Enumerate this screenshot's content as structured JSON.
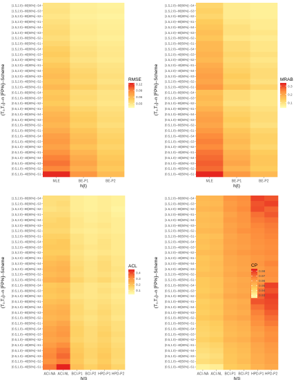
{
  "row_labels": [
    "(1.5,2.0)--80[80%]--S4",
    "(1.5,2.0)--80[80%]--S3",
    "(1.5,2.0)--80[80%]--S2",
    "(1.5,2.0)--80[80%]--S1",
    "(1.5,2.0)--80[50%]--S4",
    "(1.5,2.0)--80[50%]--S3",
    "(1.5,2.0)--80[50%]--S2",
    "(1.5,2.0)--80[50%]--S1",
    "(1.5,2.0)--40[80%]--S4",
    "(1.5,2.0)--40[80%]--S3",
    "(1.5,2.0)--40[80%]--S2",
    "(1.5,2.0)--40[80%]--S1",
    "(1.5,2.0)--40[50%]--S4",
    "(1.5,2.0)--40[50%]--S3",
    "(1.5,2.0)--40[50%]--S2",
    "(1.5,2.0)--40[50%]--S1",
    "(0.5,1.0)--80[80%]--S4",
    "(0.5,1.0)--80[80%]--S3",
    "(0.5,1.0)--80[80%]--S2",
    "(0.5,1.0)--80[80%]--S1",
    "(0.5,1.0)--80[50%]--S4",
    "(0.5,1.0)--80[50%]--S3",
    "(0.5,1.0)--80[50%]--S2",
    "(0.5,1.0)--80[50%]--S1",
    "(0.5,1.0)--40[80%]--S4",
    "(0.5,1.0)--40[80%]--S3",
    "(0.5,1.0)--40[80%]--S2",
    "(0.5,1.0)--40[80%]--S1",
    "(0.5,1.0)--40[50%]--S4",
    "(0.5,1.0)--40[50%]--S3",
    "(0.5,1.0)--40[50%]--S2",
    "(0.5,1.0)--40[50%]--S1"
  ],
  "chart_data": [
    {
      "type": "heatmap",
      "ylabel": "(T₁,T₂)--n [FP%]--Scheme",
      "xlabel": "h(t)",
      "categories": [
        "MLE",
        "BE-P1",
        "BE-P2"
      ],
      "legend_title": "RMSE",
      "legend_ticks": [
        0.12,
        0.09,
        0.06,
        0.03
      ],
      "value_range": [
        0.01,
        0.125
      ],
      "values": [
        [
          0.03,
          0.022,
          0.02
        ],
        [
          0.032,
          0.023,
          0.021
        ],
        [
          0.029,
          0.021,
          0.019
        ],
        [
          0.033,
          0.024,
          0.022
        ],
        [
          0.036,
          0.026,
          0.023
        ],
        [
          0.038,
          0.027,
          0.024
        ],
        [
          0.035,
          0.025,
          0.022
        ],
        [
          0.04,
          0.029,
          0.025
        ],
        [
          0.045,
          0.032,
          0.027
        ],
        [
          0.048,
          0.034,
          0.028
        ],
        [
          0.044,
          0.031,
          0.026
        ],
        [
          0.05,
          0.036,
          0.03
        ],
        [
          0.055,
          0.04,
          0.032
        ],
        [
          0.058,
          0.042,
          0.034
        ],
        [
          0.054,
          0.039,
          0.031
        ],
        [
          0.06,
          0.045,
          0.036
        ],
        [
          0.05,
          0.036,
          0.03
        ],
        [
          0.053,
          0.038,
          0.031
        ],
        [
          0.049,
          0.035,
          0.029
        ],
        [
          0.056,
          0.041,
          0.033
        ],
        [
          0.062,
          0.046,
          0.036
        ],
        [
          0.065,
          0.048,
          0.038
        ],
        [
          0.061,
          0.045,
          0.035
        ],
        [
          0.068,
          0.052,
          0.04
        ],
        [
          0.075,
          0.056,
          0.043
        ],
        [
          0.078,
          0.059,
          0.045
        ],
        [
          0.073,
          0.054,
          0.042
        ],
        [
          0.082,
          0.062,
          0.047
        ],
        [
          0.09,
          0.068,
          0.051
        ],
        [
          0.095,
          0.072,
          0.054
        ],
        [
          0.088,
          0.066,
          0.05
        ],
        [
          0.12,
          0.08,
          0.058
        ]
      ]
    },
    {
      "type": "heatmap",
      "ylabel": "(T₁,T₂)--n [FP%]--Scheme",
      "xlabel": "h(t)",
      "categories": [
        "MLE",
        "BE-P1",
        "BE-P2"
      ],
      "legend_title": "MRAB",
      "legend_ticks": [
        0.3,
        0.2,
        0.1
      ],
      "value_range": [
        0.04,
        0.34
      ],
      "values": [
        [
          0.12,
          0.08,
          0.07
        ],
        [
          0.13,
          0.08,
          0.07
        ],
        [
          0.12,
          0.08,
          0.07
        ],
        [
          0.14,
          0.09,
          0.08
        ],
        [
          0.15,
          0.1,
          0.08
        ],
        [
          0.16,
          0.1,
          0.09
        ],
        [
          0.15,
          0.09,
          0.08
        ],
        [
          0.17,
          0.11,
          0.09
        ],
        [
          0.17,
          0.11,
          0.09
        ],
        [
          0.18,
          0.12,
          0.1
        ],
        [
          0.17,
          0.11,
          0.09
        ],
        [
          0.19,
          0.12,
          0.1
        ],
        [
          0.2,
          0.13,
          0.11
        ],
        [
          0.21,
          0.14,
          0.11
        ],
        [
          0.2,
          0.13,
          0.1
        ],
        [
          0.22,
          0.15,
          0.12
        ],
        [
          0.16,
          0.11,
          0.09
        ],
        [
          0.17,
          0.11,
          0.09
        ],
        [
          0.16,
          0.1,
          0.09
        ],
        [
          0.18,
          0.12,
          0.1
        ],
        [
          0.2,
          0.13,
          0.11
        ],
        [
          0.21,
          0.14,
          0.11
        ],
        [
          0.2,
          0.13,
          0.1
        ],
        [
          0.22,
          0.15,
          0.12
        ],
        [
          0.24,
          0.16,
          0.13
        ],
        [
          0.25,
          0.17,
          0.13
        ],
        [
          0.24,
          0.16,
          0.12
        ],
        [
          0.26,
          0.18,
          0.14
        ],
        [
          0.27,
          0.19,
          0.15
        ],
        [
          0.28,
          0.2,
          0.15
        ],
        [
          0.27,
          0.18,
          0.14
        ],
        [
          0.33,
          0.22,
          0.17
        ]
      ]
    },
    {
      "type": "heatmap",
      "ylabel": "(T₁,T₂)--n [FP%]--Scheme",
      "xlabel": "h(t)",
      "categories": [
        "ACI-NA",
        "ACI-NL",
        "BCI-P1",
        "BCI-P2",
        "HPD-P1",
        "HPD-P2"
      ],
      "legend_title": "ACL",
      "legend_ticks": [
        0.4,
        0.3,
        0.2,
        0.1
      ],
      "value_range": [
        0.03,
        0.46
      ],
      "values": [
        [
          0.12,
          0.12,
          0.08,
          0.07,
          0.08,
          0.07
        ],
        [
          0.12,
          0.13,
          0.08,
          0.07,
          0.08,
          0.07
        ],
        [
          0.11,
          0.12,
          0.08,
          0.07,
          0.08,
          0.06
        ],
        [
          0.13,
          0.13,
          0.09,
          0.08,
          0.09,
          0.07
        ],
        [
          0.14,
          0.15,
          0.1,
          0.08,
          0.09,
          0.08
        ],
        [
          0.15,
          0.15,
          0.1,
          0.09,
          0.1,
          0.08
        ],
        [
          0.14,
          0.14,
          0.09,
          0.08,
          0.09,
          0.08
        ],
        [
          0.16,
          0.16,
          0.11,
          0.09,
          0.1,
          0.09
        ],
        [
          0.17,
          0.18,
          0.11,
          0.09,
          0.11,
          0.09
        ],
        [
          0.18,
          0.18,
          0.12,
          0.1,
          0.11,
          0.09
        ],
        [
          0.17,
          0.17,
          0.11,
          0.09,
          0.1,
          0.09
        ],
        [
          0.19,
          0.2,
          0.12,
          0.1,
          0.12,
          0.1
        ],
        [
          0.21,
          0.22,
          0.13,
          0.11,
          0.13,
          0.1
        ],
        [
          0.22,
          0.23,
          0.14,
          0.11,
          0.13,
          0.11
        ],
        [
          0.21,
          0.22,
          0.13,
          0.11,
          0.12,
          0.1
        ],
        [
          0.23,
          0.24,
          0.15,
          0.12,
          0.14,
          0.11
        ],
        [
          0.18,
          0.19,
          0.12,
          0.1,
          0.11,
          0.09
        ],
        [
          0.19,
          0.2,
          0.12,
          0.1,
          0.12,
          0.1
        ],
        [
          0.18,
          0.19,
          0.11,
          0.1,
          0.11,
          0.09
        ],
        [
          0.2,
          0.21,
          0.13,
          0.11,
          0.12,
          0.1
        ],
        [
          0.22,
          0.23,
          0.14,
          0.11,
          0.13,
          0.11
        ],
        [
          0.23,
          0.24,
          0.14,
          0.12,
          0.14,
          0.11
        ],
        [
          0.22,
          0.23,
          0.13,
          0.11,
          0.13,
          0.1
        ],
        [
          0.24,
          0.26,
          0.15,
          0.12,
          0.14,
          0.12
        ],
        [
          0.26,
          0.28,
          0.16,
          0.13,
          0.15,
          0.12
        ],
        [
          0.27,
          0.29,
          0.16,
          0.13,
          0.16,
          0.13
        ],
        [
          0.26,
          0.27,
          0.15,
          0.13,
          0.15,
          0.12
        ],
        [
          0.28,
          0.31,
          0.17,
          0.14,
          0.16,
          0.13
        ],
        [
          0.31,
          0.34,
          0.18,
          0.15,
          0.17,
          0.14
        ],
        [
          0.32,
          0.36,
          0.19,
          0.15,
          0.18,
          0.14
        ],
        [
          0.3,
          0.33,
          0.18,
          0.14,
          0.17,
          0.13
        ],
        [
          0.34,
          0.45,
          0.2,
          0.16,
          0.19,
          0.15
        ]
      ]
    },
    {
      "type": "heatmap",
      "ylabel": "(T₁,T₂)--n [FP%]--Scheme",
      "xlabel": "h(t)",
      "categories": [
        "ACI-NA",
        "ACI-NL",
        "BCI-P1",
        "BCI-P2",
        "HPD-P1",
        "HPD-P2"
      ],
      "legend_title": "CP",
      "legend_ticks": [
        0.98,
        0.97,
        0.96,
        0.95,
        0.94,
        0.93
      ],
      "value_range": [
        0.925,
        0.985
      ],
      "values": [
        [
          0.951,
          0.952,
          0.962,
          0.964,
          0.978,
          0.975
        ],
        [
          0.95,
          0.951,
          0.96,
          0.963,
          0.975,
          0.978
        ],
        [
          0.952,
          0.953,
          0.961,
          0.965,
          0.976,
          0.972
        ],
        [
          0.949,
          0.95,
          0.958,
          0.962,
          0.97,
          0.974
        ],
        [
          0.95,
          0.951,
          0.96,
          0.962,
          0.968,
          0.97
        ],
        [
          0.949,
          0.95,
          0.958,
          0.961,
          0.966,
          0.968
        ],
        [
          0.951,
          0.952,
          0.959,
          0.963,
          0.965,
          0.967
        ],
        [
          0.948,
          0.949,
          0.957,
          0.96,
          0.964,
          0.966
        ],
        [
          0.949,
          0.951,
          0.958,
          0.96,
          0.963,
          0.965
        ],
        [
          0.948,
          0.95,
          0.957,
          0.959,
          0.962,
          0.964
        ],
        [
          0.95,
          0.951,
          0.958,
          0.961,
          0.963,
          0.965
        ],
        [
          0.947,
          0.949,
          0.956,
          0.958,
          0.961,
          0.963
        ],
        [
          0.948,
          0.95,
          0.956,
          0.958,
          0.962,
          0.966
        ],
        [
          0.947,
          0.949,
          0.955,
          0.957,
          0.96,
          0.963
        ],
        [
          0.949,
          0.95,
          0.956,
          0.959,
          0.962,
          0.964
        ],
        [
          0.946,
          0.948,
          0.954,
          0.956,
          0.959,
          0.962
        ],
        [
          0.946,
          0.948,
          0.955,
          0.957,
          0.965,
          0.978
        ],
        [
          0.945,
          0.947,
          0.954,
          0.956,
          0.968,
          0.975
        ],
        [
          0.947,
          0.949,
          0.956,
          0.958,
          0.972,
          0.979
        ],
        [
          0.944,
          0.946,
          0.953,
          0.955,
          0.975,
          0.977
        ],
        [
          0.945,
          0.947,
          0.954,
          0.956,
          0.97,
          0.976
        ],
        [
          0.944,
          0.946,
          0.953,
          0.955,
          0.967,
          0.973
        ],
        [
          0.946,
          0.948,
          0.955,
          0.957,
          0.965,
          0.97
        ],
        [
          0.943,
          0.945,
          0.952,
          0.954,
          0.963,
          0.968
        ],
        [
          0.942,
          0.944,
          0.951,
          0.953,
          0.96,
          0.965
        ],
        [
          0.941,
          0.943,
          0.95,
          0.952,
          0.958,
          0.963
        ],
        [
          0.943,
          0.945,
          0.952,
          0.954,
          0.96,
          0.964
        ],
        [
          0.94,
          0.942,
          0.949,
          0.951,
          0.957,
          0.961
        ],
        [
          0.938,
          0.94,
          0.948,
          0.95,
          0.956,
          0.96
        ],
        [
          0.936,
          0.938,
          0.947,
          0.949,
          0.955,
          0.958
        ],
        [
          0.938,
          0.94,
          0.947,
          0.95,
          0.955,
          0.958
        ],
        [
          0.93,
          0.932,
          0.945,
          0.947,
          0.953,
          0.956
        ]
      ]
    }
  ]
}
